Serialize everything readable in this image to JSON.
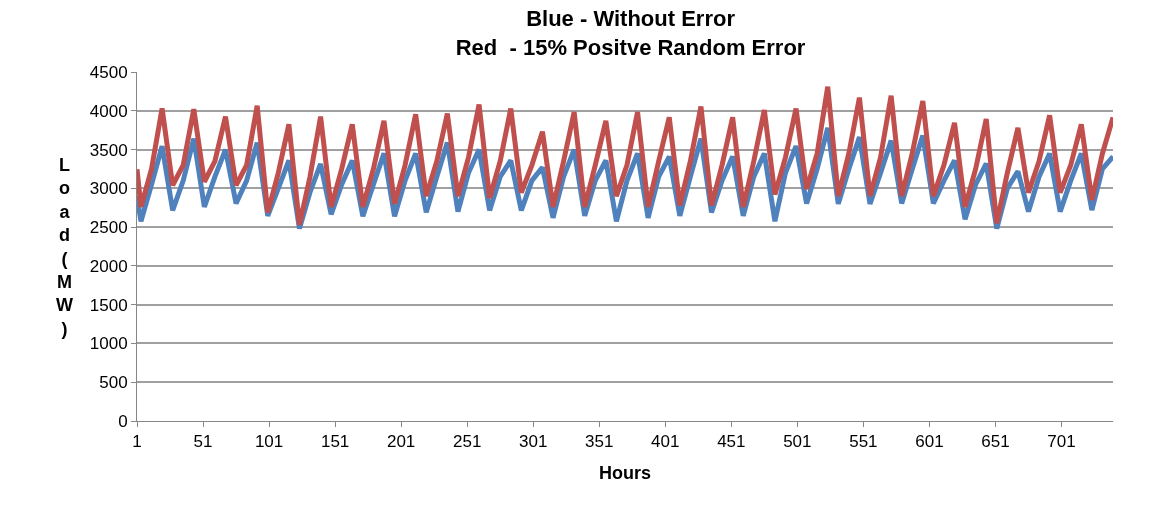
{
  "chart_data": {
    "type": "line",
    "title": "Blue - Without Error\nRed  - 15% Positve Random Error",
    "xlabel": "Hours",
    "ylabel": "Load (MW)",
    "x": [
      1,
      4,
      12,
      20,
      28,
      36,
      44,
      52,
      60,
      68,
      76,
      84,
      92,
      100,
      108,
      116,
      124,
      132,
      140,
      148,
      156,
      164,
      172,
      180,
      188,
      196,
      204,
      212,
      220,
      228,
      236,
      244,
      252,
      260,
      268,
      276,
      284,
      292,
      300,
      308,
      316,
      324,
      332,
      340,
      348,
      356,
      364,
      372,
      380,
      388,
      396,
      404,
      412,
      420,
      428,
      436,
      444,
      452,
      460,
      468,
      476,
      484,
      492,
      500,
      508,
      516,
      524,
      532,
      540,
      548,
      556,
      564,
      572,
      580,
      588,
      596,
      604,
      612,
      620,
      628,
      636,
      644,
      652,
      660,
      668,
      676,
      684,
      692,
      700,
      708,
      716,
      724,
      732,
      740
    ],
    "series": [
      {
        "color": "#4f81bd",
        "values": [
          2900,
          2575,
          3050,
          3545,
          2715,
          3100,
          3640,
          2760,
          3150,
          3500,
          2805,
          3100,
          3590,
          2645,
          3000,
          3360,
          2480,
          2950,
          3315,
          2665,
          3050,
          3360,
          2640,
          3050,
          3450,
          2640,
          3100,
          3450,
          2690,
          3150,
          3590,
          2700,
          3200,
          3500,
          2715,
          3150,
          3360,
          2715,
          3100,
          3270,
          2620,
          3150,
          3500,
          2645,
          3100,
          3360,
          2575,
          3100,
          3450,
          2620,
          3150,
          3410,
          2645,
          3150,
          3640,
          2690,
          3100,
          3410,
          2645,
          3150,
          3450,
          2575,
          3200,
          3545,
          2805,
          3250,
          3780,
          2800,
          3250,
          3660,
          2800,
          3200,
          3615,
          2805,
          3250,
          3680,
          2805,
          3100,
          3360,
          2600,
          3050,
          3320,
          2480,
          3000,
          3220,
          2700,
          3150,
          3450,
          2700,
          3100,
          3450,
          2720,
          3250,
          3410
        ]
      },
      {
        "color": "#c0504d",
        "values": [
          3245,
          2760,
          3250,
          4030,
          3040,
          3300,
          4020,
          3085,
          3350,
          3925,
          3040,
          3300,
          4065,
          2690,
          3200,
          3825,
          2530,
          3150,
          3925,
          2760,
          3250,
          3825,
          2760,
          3250,
          3870,
          2800,
          3300,
          3955,
          2900,
          3350,
          3965,
          2900,
          3400,
          4080,
          2875,
          3350,
          4030,
          2945,
          3300,
          3730,
          2760,
          3350,
          3985,
          2760,
          3300,
          3870,
          2900,
          3300,
          3985,
          2760,
          3350,
          3915,
          2780,
          3350,
          4055,
          2780,
          3300,
          3915,
          2760,
          3350,
          4010,
          2920,
          3400,
          4030,
          2990,
          3450,
          4310,
          2900,
          3450,
          4170,
          2900,
          3400,
          4195,
          2900,
          3450,
          4125,
          2900,
          3300,
          3845,
          2760,
          3250,
          3895,
          2550,
          3200,
          3780,
          2945,
          3350,
          3940,
          2945,
          3300,
          3825,
          2850,
          3450,
          3915
        ]
      }
    ],
    "xlim": [
      1,
      740
    ],
    "xticks": [
      1,
      51,
      101,
      151,
      201,
      251,
      301,
      351,
      401,
      451,
      501,
      551,
      601,
      651,
      701
    ],
    "ylim": [
      0,
      4500
    ],
    "yticks": [
      0,
      500,
      1000,
      1500,
      2000,
      2500,
      3000,
      3500,
      4000,
      4500
    ],
    "grid": "y",
    "marker": "none",
    "line_style": "solid"
  }
}
